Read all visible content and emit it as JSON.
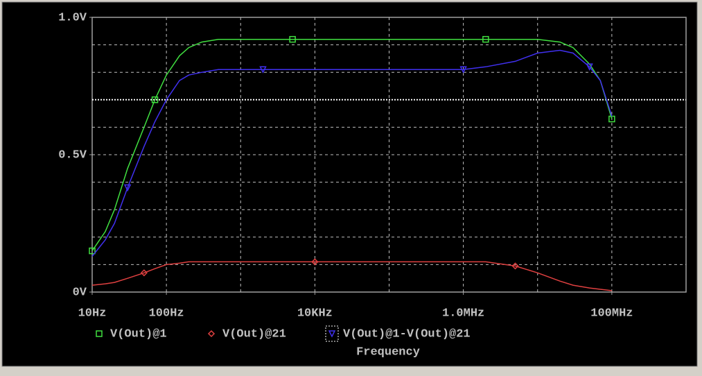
{
  "chart_data": {
    "type": "line",
    "x_label": "Frequency",
    "x": [
      10,
      15,
      20,
      30,
      50,
      70,
      100,
      150,
      200,
      300,
      500,
      1000,
      2000,
      5000,
      10000,
      100000,
      1000000,
      2000000,
      5000000,
      10000000,
      20000000,
      30000000,
      50000000,
      70000000,
      100000000
    ],
    "series": [
      {
        "name": "V(Out)@1",
        "color": "#40e040",
        "marker": "square",
        "values": [
          0.15,
          0.22,
          0.3,
          0.45,
          0.6,
          0.7,
          0.79,
          0.86,
          0.89,
          0.91,
          0.92,
          0.92,
          0.92,
          0.92,
          0.92,
          0.92,
          0.92,
          0.92,
          0.92,
          0.92,
          0.91,
          0.89,
          0.83,
          0.77,
          0.63
        ]
      },
      {
        "name": "V(Out)@21",
        "color": "#e04040",
        "marker": "diamond",
        "values": [
          0.025,
          0.03,
          0.035,
          0.05,
          0.07,
          0.085,
          0.1,
          0.105,
          0.11,
          0.11,
          0.11,
          0.11,
          0.11,
          0.11,
          0.11,
          0.11,
          0.11,
          0.11,
          0.095,
          0.07,
          0.04,
          0.025,
          0.015,
          0.01,
          0.005
        ]
      },
      {
        "name": "V(Out)@1-V(Out)@21",
        "color": "#4030f0",
        "marker": "triangle",
        "values": [
          0.13,
          0.19,
          0.25,
          0.38,
          0.53,
          0.62,
          0.7,
          0.77,
          0.79,
          0.8,
          0.81,
          0.81,
          0.81,
          0.81,
          0.81,
          0.81,
          0.81,
          0.82,
          0.84,
          0.87,
          0.88,
          0.87,
          0.82,
          0.77,
          0.64
        ]
      }
    ],
    "xscale": "log",
    "xlim": [
      10,
      1000000000
    ],
    "xticks": [
      {
        "value": 10,
        "label": "10Hz"
      },
      {
        "value": 100,
        "label": "100Hz"
      },
      {
        "value": 10000,
        "label": "10KHz"
      },
      {
        "value": 1000000,
        "label": "1.0MHz"
      },
      {
        "value": 100000000,
        "label": "100MHz"
      }
    ],
    "xgrid": [
      100,
      1000,
      10000,
      100000,
      1000000,
      10000000,
      100000000
    ],
    "ylim": [
      0,
      1
    ],
    "yticks": [
      {
        "value": 0,
        "label": "0V"
      },
      {
        "value": 0.5,
        "label": "0.5V"
      },
      {
        "value": 1,
        "label": "1.0V"
      }
    ],
    "ygrid": [
      0.1,
      0.2,
      0.3,
      0.4,
      0.5,
      0.6,
      0.8,
      0.9
    ],
    "reference_line": 0.7,
    "grid": true
  }
}
